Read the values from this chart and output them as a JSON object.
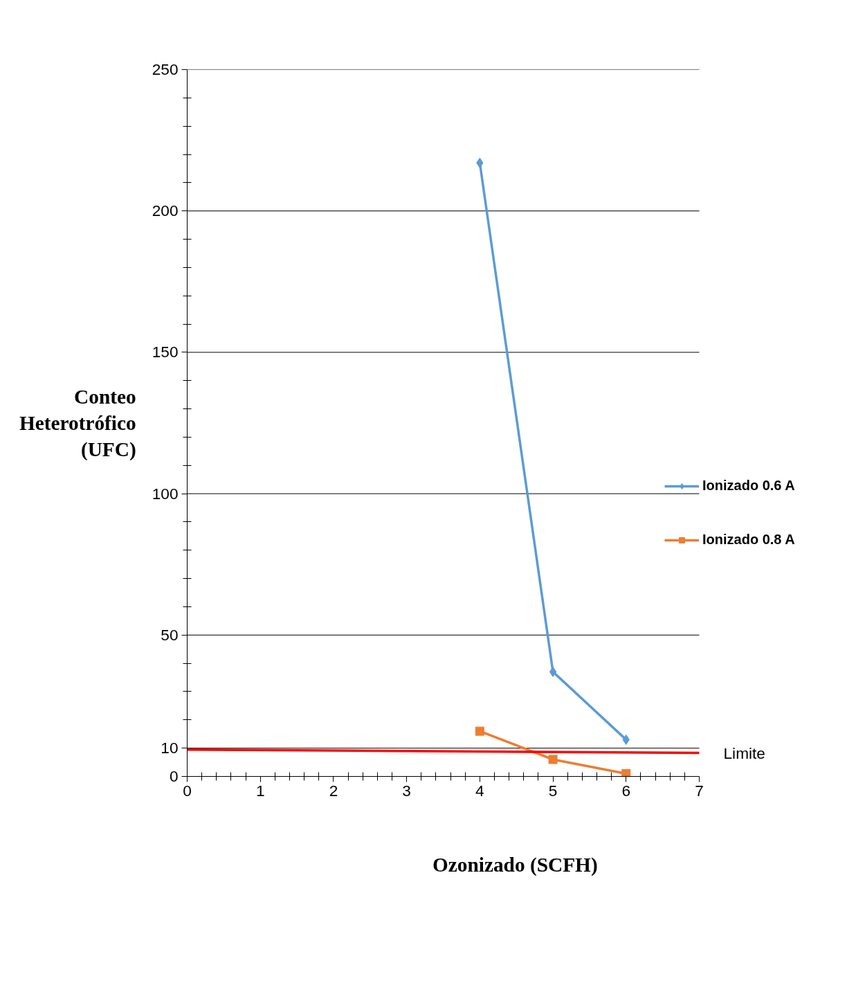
{
  "chart_data": {
    "type": "line",
    "xlabel": "Ozonizado  (SCFH)",
    "ylabel": "Conteo Heterotrófico (UFC)",
    "x": [
      4,
      5,
      6
    ],
    "series": [
      {
        "name": "Ionizado 0.6 A",
        "color": "#5b9bd5",
        "values": [
          217,
          37,
          13
        ],
        "marker": "diamond"
      },
      {
        "name": "Ionizado 0.8 A",
        "color": "#ed7d31",
        "values": [
          16,
          6,
          1
        ],
        "marker": "square"
      },
      {
        "name": "Limite",
        "color": "#ff0000",
        "x": [
          0,
          7
        ],
        "values": [
          9.5,
          8.3
        ],
        "marker": "none"
      }
    ],
    "xlim": [
      0,
      7
    ],
    "xticks": [
      0,
      1,
      2,
      3,
      4,
      5,
      6,
      7
    ],
    "ylim": [
      0,
      250
    ],
    "yticks": [
      0,
      10,
      50,
      100,
      150,
      200,
      250
    ],
    "grid": "y",
    "legend": "right",
    "line_style": "solid"
  }
}
